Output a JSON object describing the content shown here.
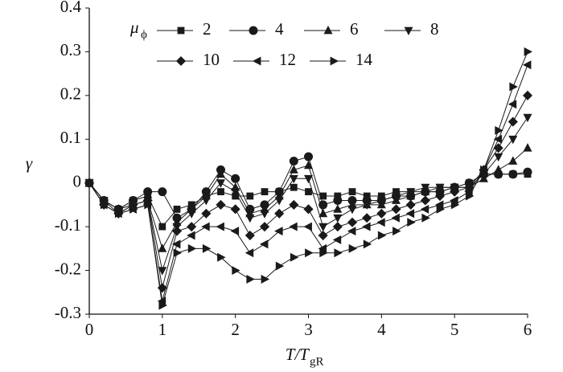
{
  "chart_data": {
    "type": "line",
    "xlabel": "T/T",
    "xlabel_subscript": "gR",
    "ylabel": "γ",
    "legend_title": "μ",
    "legend_title_subscript": "ϕ",
    "xlim": [
      0,
      6
    ],
    "xticks": [
      0,
      1,
      2,
      3,
      4,
      5,
      6
    ],
    "ylim": [
      -0.3,
      0.4
    ],
    "yticks": [
      -0.3,
      -0.2,
      -0.1,
      0,
      0.1,
      0.2,
      0.3,
      0.4
    ],
    "x": [
      0,
      0.2,
      0.4,
      0.6,
      0.8,
      1.0,
      1.2,
      1.4,
      1.6,
      1.8,
      2.0,
      2.2,
      2.4,
      2.6,
      2.8,
      3.0,
      3.2,
      3.4,
      3.6,
      3.8,
      4.0,
      4.2,
      4.4,
      4.6,
      4.8,
      5.0,
      5.2,
      5.4,
      5.6,
      5.8,
      6.0
    ],
    "series": [
      {
        "name": "2",
        "color": "#1a1a1a",
        "marker": "square",
        "values": [
          0,
          -0.04,
          -0.06,
          -0.04,
          -0.03,
          -0.1,
          -0.06,
          -0.05,
          -0.03,
          -0.02,
          -0.03,
          -0.03,
          -0.02,
          -0.02,
          -0.01,
          -0.02,
          -0.03,
          -0.03,
          -0.02,
          -0.03,
          -0.03,
          -0.02,
          -0.02,
          -0.02,
          -0.01,
          -0.01,
          0,
          0.02,
          0.02,
          0.02,
          0.02
        ]
      },
      {
        "name": "4",
        "color": "#1a1a1a",
        "marker": "circle",
        "values": [
          0,
          -0.04,
          -0.06,
          -0.04,
          -0.02,
          -0.02,
          -0.08,
          -0.06,
          -0.02,
          0.03,
          0.01,
          -0.06,
          -0.05,
          -0.02,
          0.05,
          0.06,
          -0.05,
          -0.04,
          -0.04,
          -0.04,
          -0.04,
          -0.03,
          -0.03,
          -0.02,
          -0.02,
          -0.01,
          0,
          0.02,
          0.02,
          0.02,
          0.025
        ]
      },
      {
        "name": "6",
        "color": "#1a1a1a",
        "marker": "triangle-up",
        "values": [
          0,
          -0.04,
          -0.06,
          -0.05,
          -0.04,
          -0.15,
          -0.09,
          -0.06,
          -0.03,
          0.02,
          -0.01,
          -0.07,
          -0.06,
          -0.03,
          0.03,
          0.04,
          -0.07,
          -0.06,
          -0.05,
          -0.05,
          -0.05,
          -0.04,
          -0.03,
          -0.02,
          -0.02,
          -0.01,
          -0.01,
          0.01,
          0.03,
          0.05,
          0.08
        ]
      },
      {
        "name": "8",
        "color": "#1a1a1a",
        "marker": "triangle-down",
        "values": [
          0,
          -0.04,
          -0.07,
          -0.05,
          -0.04,
          -0.2,
          -0.1,
          -0.07,
          -0.04,
          0,
          -0.02,
          -0.08,
          -0.07,
          -0.04,
          0.01,
          0.01,
          -0.1,
          -0.08,
          -0.06,
          -0.05,
          -0.04,
          -0.03,
          -0.02,
          -0.01,
          -0.01,
          -0.01,
          -0.01,
          0.02,
          0.06,
          0.1,
          0.15
        ]
      },
      {
        "name": "10",
        "color": "#1a1a1a",
        "marker": "diamond",
        "values": [
          0,
          -0.05,
          -0.07,
          -0.05,
          -0.04,
          -0.24,
          -0.11,
          -0.1,
          -0.07,
          -0.05,
          -0.06,
          -0.12,
          -0.1,
          -0.07,
          -0.05,
          -0.06,
          -0.12,
          -0.1,
          -0.09,
          -0.08,
          -0.07,
          -0.06,
          -0.05,
          -0.04,
          -0.03,
          -0.02,
          -0.01,
          0.03,
          0.08,
          0.14,
          0.2
        ]
      },
      {
        "name": "12",
        "color": "#1a1a1a",
        "marker": "triangle-left",
        "values": [
          0,
          -0.05,
          -0.07,
          -0.06,
          -0.05,
          -0.27,
          -0.14,
          -0.12,
          -0.1,
          -0.1,
          -0.11,
          -0.16,
          -0.14,
          -0.11,
          -0.1,
          -0.1,
          -0.15,
          -0.13,
          -0.11,
          -0.1,
          -0.09,
          -0.08,
          -0.07,
          -0.06,
          -0.05,
          -0.04,
          -0.02,
          0.03,
          0.1,
          0.18,
          0.27
        ]
      },
      {
        "name": "14",
        "color": "#1a1a1a",
        "marker": "triangle-right",
        "values": [
          0,
          -0.05,
          -0.07,
          -0.06,
          -0.05,
          -0.28,
          -0.16,
          -0.15,
          -0.15,
          -0.17,
          -0.2,
          -0.22,
          -0.22,
          -0.19,
          -0.17,
          -0.16,
          -0.16,
          -0.16,
          -0.15,
          -0.14,
          -0.12,
          -0.11,
          -0.09,
          -0.08,
          -0.06,
          -0.05,
          -0.03,
          0.03,
          0.12,
          0.22,
          0.3
        ]
      }
    ]
  }
}
